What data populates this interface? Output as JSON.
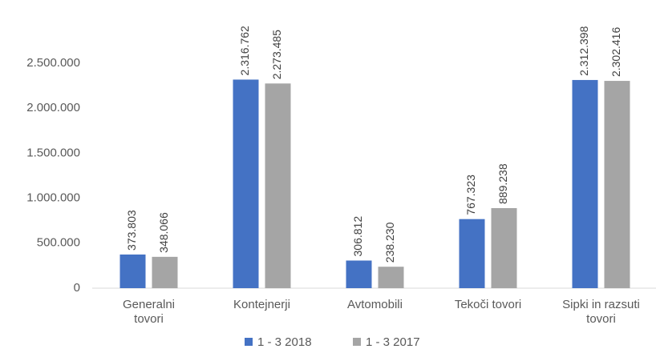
{
  "chart_data": {
    "type": "bar",
    "categories": [
      "Generalni\ntovori",
      "Kontejnerji",
      "Avtomobili",
      "Tekoči tovori",
      "Sipki in razsuti\ntovori"
    ],
    "series": [
      {
        "name": "1 - 3 2018",
        "color": "#4472c4",
        "values": [
          373803,
          2316762,
          306812,
          767323,
          2312398
        ],
        "value_labels": [
          "373.803",
          "2.316.762",
          "306.812",
          "767.323",
          "2.312.398"
        ]
      },
      {
        "name": "1 - 3 2017",
        "color": "#a5a5a5",
        "values": [
          348066,
          2273485,
          238230,
          889238,
          2302416
        ],
        "value_labels": [
          "348.066",
          "2.273.485",
          "238.230",
          "889.238",
          "2.302.416"
        ]
      }
    ],
    "ylim": [
      0,
      3000000
    ],
    "yticks": [
      0,
      {
        "value": 500000,
        "label": "500.000"
      },
      {
        "value": 1000000,
        "label": "1.000.000"
      },
      {
        "value": 1500000,
        "label": "1.500.000"
      },
      {
        "value": 2000000,
        "label": "2.000.000"
      },
      {
        "value": 2500000,
        "label": "2.500.000"
      }
    ],
    "grid": false,
    "legend": "bottom"
  }
}
